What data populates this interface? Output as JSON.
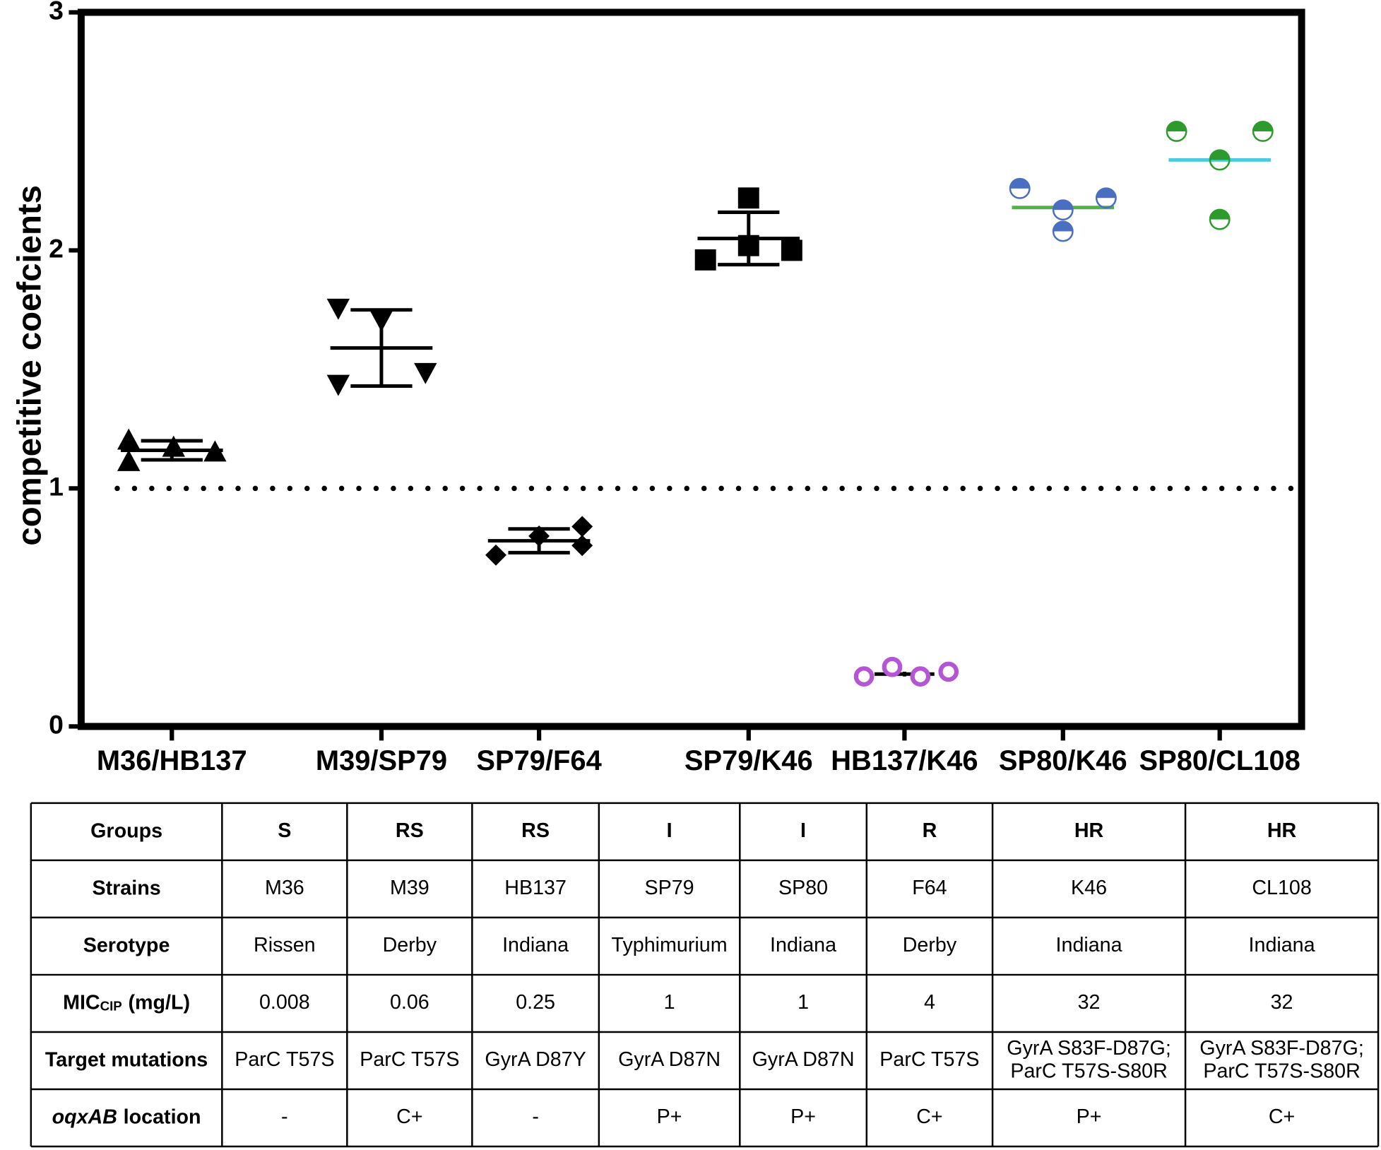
{
  "chart_data": {
    "type": "scatter",
    "ylabel": "competitive coefcients",
    "categories": [
      "M36/HB137",
      "M39/SP79",
      "SP79/F64",
      "SP79/K46",
      "HB137/K46",
      "SP80/K46",
      "SP80/CL108"
    ],
    "ylim": [
      0,
      3
    ],
    "yticks": [
      0,
      1,
      2,
      3
    ],
    "reference_line": 1,
    "series": [
      {
        "marker": "triangle-up",
        "color": "#000000",
        "values": [
          1.2,
          1.11,
          1.17,
          1.15
        ],
        "mean": 1.16,
        "sd": 0.04,
        "mean_color": "#000000"
      },
      {
        "marker": "triangle-down",
        "color": "#000000",
        "values": [
          1.76,
          1.71,
          1.44,
          1.49
        ],
        "mean": 1.59,
        "sd": 0.16,
        "mean_color": "#000000"
      },
      {
        "marker": "diamond",
        "color": "#000000",
        "values": [
          0.72,
          0.8,
          0.84,
          0.76
        ],
        "mean": 0.78,
        "sd": 0.05,
        "mean_color": "#000000"
      },
      {
        "marker": "square",
        "color": "#000000",
        "values": [
          1.96,
          2.22,
          2.02,
          2.0
        ],
        "mean": 2.05,
        "sd": 0.11,
        "mean_color": "#000000"
      },
      {
        "marker": "circle-open",
        "color": "#b455d6",
        "values": [
          0.21,
          0.25,
          0.21,
          0.23
        ],
        "mean": 0.22,
        "sd": 0.01,
        "mean_color": "#000000"
      },
      {
        "marker": "circle-half",
        "color": "#4a6fc0",
        "values": [
          2.26,
          2.17,
          2.08,
          2.22
        ],
        "mean": 2.18,
        "mean_color": "#56b04a"
      },
      {
        "marker": "circle-half",
        "color": "#2e9a2e",
        "values": [
          2.5,
          2.38,
          2.13,
          2.5
        ],
        "mean": 2.38,
        "mean_color": "#4cc8e0"
      }
    ]
  },
  "table": {
    "rows": [
      {
        "header": "Groups",
        "cells": [
          "S",
          "RS",
          "RS",
          "I",
          "I",
          "R",
          "HR",
          "HR"
        ]
      },
      {
        "header": "Strains",
        "cells": [
          "M36",
          "M39",
          "HB137",
          "SP79",
          "SP80",
          "F64",
          "K46",
          "CL108"
        ]
      },
      {
        "header": "Serotype",
        "cells": [
          "Rissen",
          "Derby",
          "Indiana",
          "Typhimurium",
          "Indiana",
          "Derby",
          "Indiana",
          "Indiana"
        ]
      },
      {
        "header": "MIC",
        "header_sub": "CIP",
        "header_rest": "(mg/L)",
        "cells": [
          "0.008",
          "0.06",
          "0.25",
          "1",
          "1",
          "4",
          "32",
          "32"
        ]
      },
      {
        "header": "Target mutations",
        "cells": [
          "ParC T57S",
          "ParC T57S",
          "GyrA D87Y",
          "GyrA D87N",
          "GyrA D87N",
          "ParC T57S",
          [
            "GyrA S83F-D87G;",
            "ParC T57S-S80R"
          ],
          [
            "GyrA S83F-D87G;",
            "ParC T57S-S80R"
          ]
        ]
      },
      {
        "header": "oqxAB",
        "header_rest": "location",
        "cells": [
          "-",
          "C+",
          "-",
          "P+",
          "P+",
          "C+",
          "P+",
          "C+"
        ]
      }
    ]
  }
}
